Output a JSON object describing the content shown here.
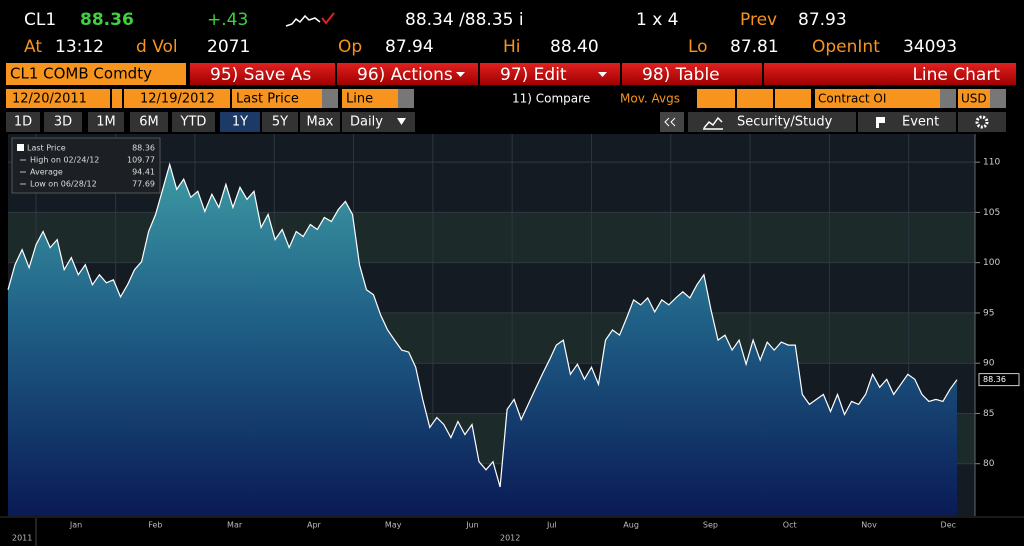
{
  "quote": {
    "ticker": "CL1",
    "last": "88.36",
    "change": "+.43",
    "bid_ask": "88.34 /88.35 i",
    "size": "1 x 4",
    "prev_label": "Prev",
    "prev": "87.93",
    "time_label": "At",
    "time": "13:12",
    "vol_label": "d Vol",
    "vol": "2071",
    "open_label": "Op",
    "open": "87.94",
    "high_label": "Hi",
    "high": "88.40",
    "low_label": "Lo",
    "low": "87.81",
    "oi_label": "OpenInt",
    "oi": "34093"
  },
  "toolbar": {
    "security": "CL1 COMB Comdty",
    "buttons": [
      "95) Save As",
      "96) Actions",
      "97) Edit",
      "98) Table"
    ],
    "chart_type": "Line Chart"
  },
  "settings": {
    "start": "12/20/2011",
    "end": "12/19/2012",
    "field": "Last Price",
    "style": "Line",
    "compare": "11) Compare",
    "mov_avgs": "Mov. Avgs",
    "contract": "Contract OI",
    "currency": "USD"
  },
  "ranges": {
    "buttons": [
      "1D",
      "3D",
      "1M",
      "6M",
      "YTD",
      "1Y",
      "5Y",
      "Max"
    ],
    "selected": 5,
    "period": "Daily",
    "security_study": "Security/Study",
    "event": "Event"
  },
  "chart_data": {
    "type": "area",
    "series": [
      {
        "name": "Last Price",
        "color": "#ffffff",
        "values": [
          97.3,
          99.8,
          101.3,
          99.5,
          101.8,
          103.1,
          101.5,
          102.3,
          99.3,
          100.5,
          98.8,
          99.8,
          97.8,
          98.8,
          98.0,
          98.3,
          96.6,
          97.8,
          99.3,
          100.1,
          103.1,
          104.8,
          107.3,
          109.77,
          107.3,
          108.3,
          106.5,
          107.1,
          105.1,
          106.8,
          105.5,
          107.8,
          105.5,
          107.5,
          106.3,
          107.1,
          103.5,
          104.8,
          102.3,
          103.3,
          101.5,
          103.1,
          102.6,
          103.8,
          103.3,
          104.5,
          104.1,
          105.3,
          106.1,
          104.8,
          99.8,
          97.3,
          96.8,
          94.8,
          93.3,
          92.3,
          91.3,
          91.1,
          89.6,
          86.4,
          83.6,
          84.6,
          83.9,
          82.6,
          84.2,
          82.9,
          83.9,
          80.2,
          79.4,
          80.2,
          77.69,
          85.4,
          86.4,
          84.4,
          85.9,
          87.4,
          88.9,
          90.3,
          91.8,
          92.3,
          88.9,
          89.9,
          88.4,
          89.6,
          87.9,
          92.3,
          93.3,
          92.8,
          94.5,
          96.3,
          95.8,
          96.5,
          95.1,
          96.3,
          95.8,
          96.5,
          97.1,
          96.5,
          97.8,
          98.8,
          95.3,
          92.3,
          92.8,
          91.3,
          92.3,
          89.9,
          92.3,
          90.3,
          92.1,
          91.3,
          92.1,
          91.8,
          91.8,
          86.9,
          85.9,
          86.4,
          86.9,
          85.2,
          86.9,
          84.9,
          86.2,
          85.9,
          86.9,
          88.9,
          87.6,
          88.4,
          86.9,
          87.9,
          88.9,
          88.4,
          86.9,
          86.2,
          86.4,
          86.2,
          87.4,
          88.36
        ]
      }
    ],
    "stats": [
      {
        "label": "High on 02/24/12",
        "value": 109.77
      },
      {
        "label": "Average",
        "value": 94.41
      },
      {
        "label": "Low on 06/28/12",
        "value": 77.69
      }
    ],
    "months": [
      "Jan",
      "Feb",
      "Mar",
      "Apr",
      "May",
      "Jun",
      "Jul",
      "Aug",
      "Sep",
      "Oct",
      "Nov",
      "Dec"
    ],
    "years": [
      "2011",
      "2012"
    ],
    "ylim": [
      74.8,
      112.8
    ],
    "yticks": [
      80,
      85,
      90,
      95,
      100,
      105,
      110
    ],
    "grid": true
  }
}
